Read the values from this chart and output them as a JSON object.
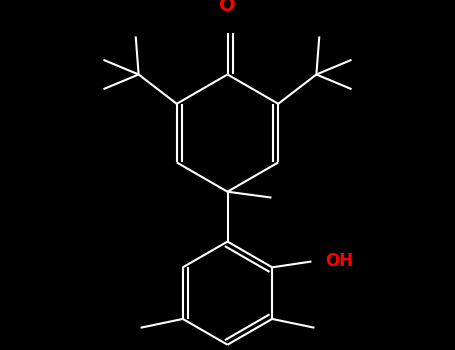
{
  "bg_color": "#000000",
  "bond_color": "#ffffff",
  "atom_O_color": "#ff0000",
  "atom_OH_color": "#ff0000",
  "bond_width": 1.5,
  "figsize": [
    4.55,
    3.5
  ],
  "dpi": 100,
  "xlim": [
    -2.8,
    2.8
  ],
  "ylim": [
    -3.2,
    2.2
  ]
}
